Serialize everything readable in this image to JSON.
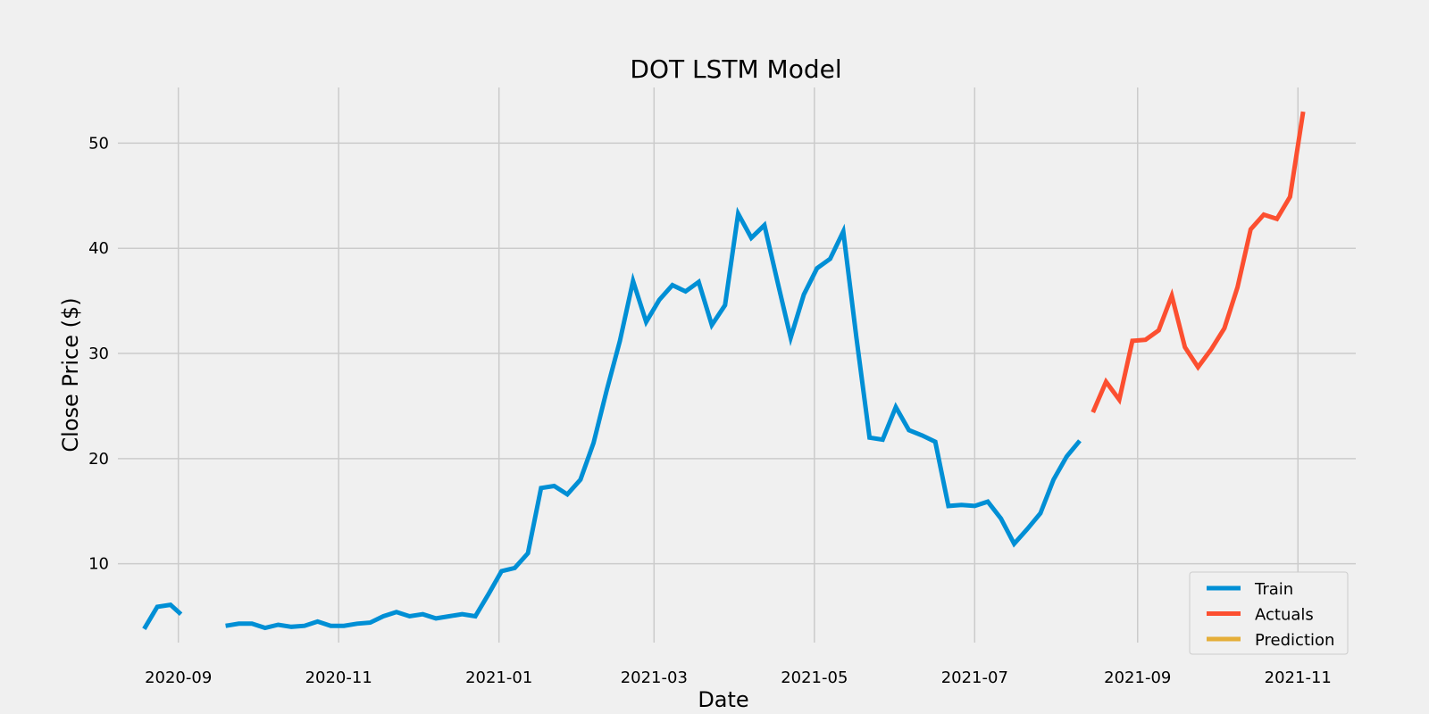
{
  "chart_data": {
    "type": "line",
    "title": "DOT LSTM Model",
    "xlabel": "Date",
    "ylabel": "Close Price ($)",
    "x_axis_type": "date",
    "xlim": [
      "2020-08-09",
      "2021-11-23"
    ],
    "ylim": [
      2.5,
      55.3
    ],
    "grid": true,
    "legend_placement": "lower-right",
    "x_ticks": [
      {
        "value": "2020-09-01",
        "label": "2020-09"
      },
      {
        "value": "2020-11-01",
        "label": "2020-11"
      },
      {
        "value": "2021-01-01",
        "label": "2021-01"
      },
      {
        "value": "2021-03-01",
        "label": "2021-03"
      },
      {
        "value": "2021-05-01",
        "label": "2021-05"
      },
      {
        "value": "2021-07-01",
        "label": "2021-07"
      },
      {
        "value": "2021-09-01",
        "label": "2021-09"
      },
      {
        "value": "2021-11-01",
        "label": "2021-11"
      }
    ],
    "y_ticks": [
      {
        "value": 10,
        "label": "10"
      },
      {
        "value": 20,
        "label": "20"
      },
      {
        "value": 30,
        "label": "30"
      },
      {
        "value": 40,
        "label": "40"
      },
      {
        "value": 50,
        "label": "50"
      }
    ],
    "series": [
      {
        "name": "Train",
        "color": "#008fd5",
        "segments": [
          [
            [
              "2020-08-19",
              3.8
            ],
            [
              "2020-08-24",
              5.9
            ],
            [
              "2020-08-29",
              6.1
            ],
            [
              "2020-09-02",
              5.2
            ]
          ],
          [
            [
              "2020-09-19",
              4.1
            ],
            [
              "2020-09-24",
              4.3
            ],
            [
              "2020-09-29",
              4.3
            ],
            [
              "2020-10-04",
              3.9
            ],
            [
              "2020-10-09",
              4.2
            ],
            [
              "2020-10-14",
              4.0
            ],
            [
              "2020-10-19",
              4.1
            ],
            [
              "2020-10-24",
              4.5
            ],
            [
              "2020-10-29",
              4.1
            ],
            [
              "2020-11-03",
              4.1
            ],
            [
              "2020-11-08",
              4.3
            ],
            [
              "2020-11-13",
              4.4
            ],
            [
              "2020-11-18",
              5.0
            ],
            [
              "2020-11-23",
              5.4
            ],
            [
              "2020-11-28",
              5.0
            ],
            [
              "2020-12-03",
              5.2
            ],
            [
              "2020-12-08",
              4.8
            ],
            [
              "2020-12-13",
              5.0
            ],
            [
              "2020-12-18",
              5.2
            ],
            [
              "2020-12-23",
              5.0
            ],
            [
              "2020-12-28",
              7.1
            ],
            [
              "2021-01-02",
              9.3
            ],
            [
              "2021-01-07",
              9.6
            ],
            [
              "2021-01-12",
              11.0
            ],
            [
              "2021-01-17",
              17.2
            ],
            [
              "2021-01-22",
              17.4
            ],
            [
              "2021-01-27",
              16.6
            ],
            [
              "2021-02-01",
              18.0
            ],
            [
              "2021-02-06",
              21.5
            ],
            [
              "2021-02-11",
              26.5
            ],
            [
              "2021-02-16",
              31.2
            ],
            [
              "2021-02-21",
              36.9
            ],
            [
              "2021-02-26",
              33.0
            ],
            [
              "2021-03-03",
              35.1
            ],
            [
              "2021-03-08",
              36.5
            ],
            [
              "2021-03-13",
              35.9
            ],
            [
              "2021-03-18",
              36.8
            ],
            [
              "2021-03-23",
              32.7
            ],
            [
              "2021-03-28",
              34.6
            ],
            [
              "2021-04-02",
              43.3
            ],
            [
              "2021-04-07",
              41.0
            ],
            [
              "2021-04-12",
              42.2
            ],
            [
              "2021-04-17",
              36.8
            ],
            [
              "2021-04-22",
              31.5
            ],
            [
              "2021-04-27",
              35.6
            ],
            [
              "2021-05-02",
              38.1
            ],
            [
              "2021-05-07",
              39.0
            ],
            [
              "2021-05-12",
              41.6
            ],
            [
              "2021-05-17",
              31.5
            ],
            [
              "2021-05-22",
              22.0
            ],
            [
              "2021-05-27",
              21.8
            ],
            [
              "2021-06-01",
              24.9
            ],
            [
              "2021-06-06",
              22.7
            ],
            [
              "2021-06-11",
              22.2
            ],
            [
              "2021-06-16",
              21.6
            ],
            [
              "2021-06-21",
              15.5
            ],
            [
              "2021-06-26",
              15.6
            ],
            [
              "2021-07-01",
              15.5
            ],
            [
              "2021-07-06",
              15.9
            ],
            [
              "2021-07-11",
              14.3
            ],
            [
              "2021-07-16",
              11.9
            ],
            [
              "2021-07-21",
              13.3
            ],
            [
              "2021-07-26",
              14.8
            ],
            [
              "2021-07-31",
              18.0
            ],
            [
              "2021-08-05",
              20.2
            ],
            [
              "2021-08-10",
              21.7
            ]
          ]
        ]
      },
      {
        "name": "Actuals",
        "color": "#fc4f30",
        "segments": [
          [
            [
              "2021-08-15",
              24.4
            ],
            [
              "2021-08-20",
              27.3
            ],
            [
              "2021-08-25",
              25.6
            ],
            [
              "2021-08-30",
              31.2
            ],
            [
              "2021-09-04",
              31.3
            ],
            [
              "2021-09-09",
              32.2
            ],
            [
              "2021-09-14",
              35.5
            ],
            [
              "2021-09-19",
              30.6
            ],
            [
              "2021-09-24",
              28.7
            ],
            [
              "2021-09-29",
              30.4
            ],
            [
              "2021-10-04",
              32.4
            ],
            [
              "2021-10-09",
              36.3
            ],
            [
              "2021-10-14",
              41.8
            ],
            [
              "2021-10-19",
              43.2
            ],
            [
              "2021-10-24",
              42.8
            ],
            [
              "2021-10-29",
              44.9
            ],
            [
              "2021-11-03",
              53.0
            ]
          ]
        ]
      },
      {
        "name": "Prediction",
        "color": "#e5ae38",
        "segments": []
      }
    ]
  }
}
